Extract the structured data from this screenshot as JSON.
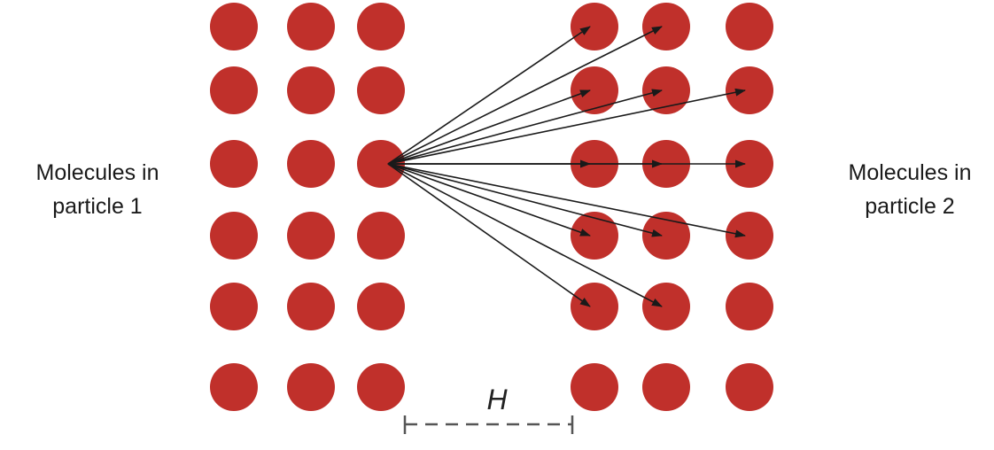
{
  "labels": {
    "particle1_line1": "Molecules in",
    "particle1_line2": "particle 1",
    "particle2_line1": "Molecules in",
    "particle2_line2": "particle 2",
    "gap": "H"
  },
  "colors": {
    "molecule": "#c0302b",
    "arrow": "#1a1a1a",
    "dimension_line": "#555555"
  },
  "particle1": {
    "rows": 6,
    "cols": 3
  },
  "particle2": {
    "rows": 6,
    "cols": 3
  },
  "interactions": {
    "source": {
      "particle": 1,
      "row": 3,
      "col": 3
    },
    "targets": [
      {
        "row": 1,
        "col": 1
      },
      {
        "row": 1,
        "col": 2
      },
      {
        "row": 2,
        "col": 1
      },
      {
        "row": 2,
        "col": 2
      },
      {
        "row": 2,
        "col": 3
      },
      {
        "row": 3,
        "col": 1
      },
      {
        "row": 3,
        "col": 2
      },
      {
        "row": 3,
        "col": 3
      },
      {
        "row": 4,
        "col": 1
      },
      {
        "row": 4,
        "col": 2
      },
      {
        "row": 4,
        "col": 3
      },
      {
        "row": 5,
        "col": 1
      },
      {
        "row": 5,
        "col": 2
      }
    ]
  }
}
